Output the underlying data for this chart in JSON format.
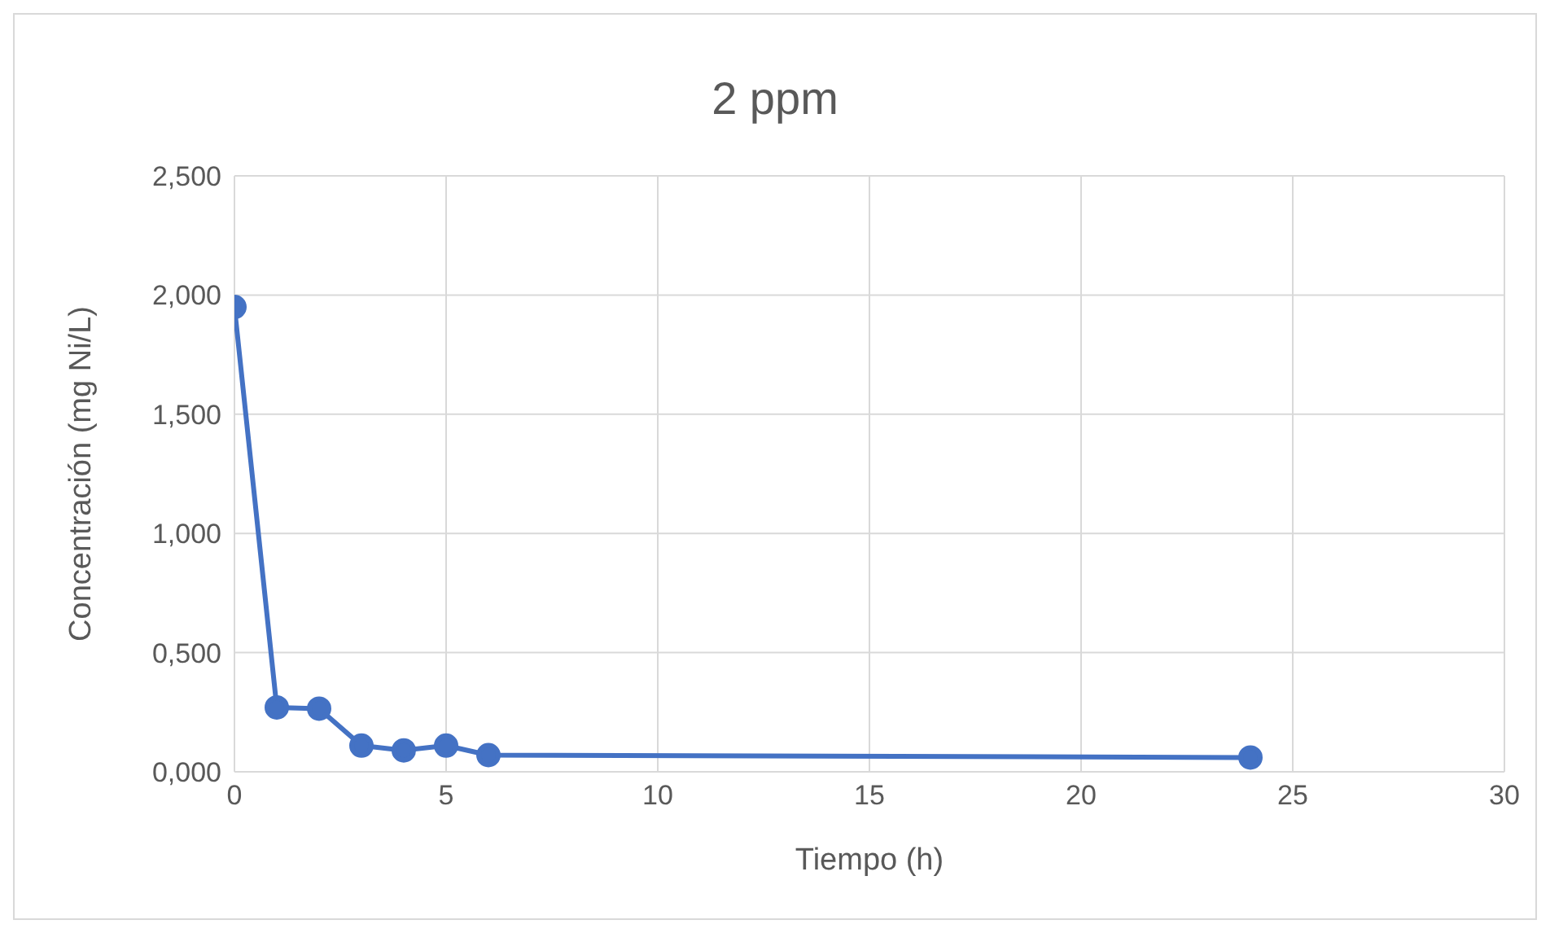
{
  "chart_data": {
    "type": "line",
    "title": "2 ppm",
    "xlabel": "Tiempo (h)",
    "ylabel": "Concentración (mg Ni/L)",
    "x": [
      0,
      1,
      2,
      3,
      4,
      5,
      6,
      24
    ],
    "series": [
      {
        "color": "#4472c4",
        "values": [
          1.95,
          0.27,
          0.265,
          0.11,
          0.09,
          0.11,
          0.07,
          0.06
        ]
      }
    ],
    "xlim": [
      0,
      30
    ],
    "xticks": [
      0,
      5,
      10,
      15,
      20,
      25,
      30
    ],
    "ylim": [
      0,
      2.5
    ],
    "yticks": [
      {
        "value": 0,
        "label": "0,000"
      },
      {
        "value": 0.5,
        "label": "0,500"
      },
      {
        "value": 1,
        "label": "1,000"
      },
      {
        "value": 1.5,
        "label": "1,500"
      },
      {
        "value": 2,
        "label": "2,000"
      },
      {
        "value": 2.5,
        "label": "2,500"
      }
    ],
    "grid": true,
    "legend": false,
    "marker": "circle",
    "line_style": "solid"
  }
}
